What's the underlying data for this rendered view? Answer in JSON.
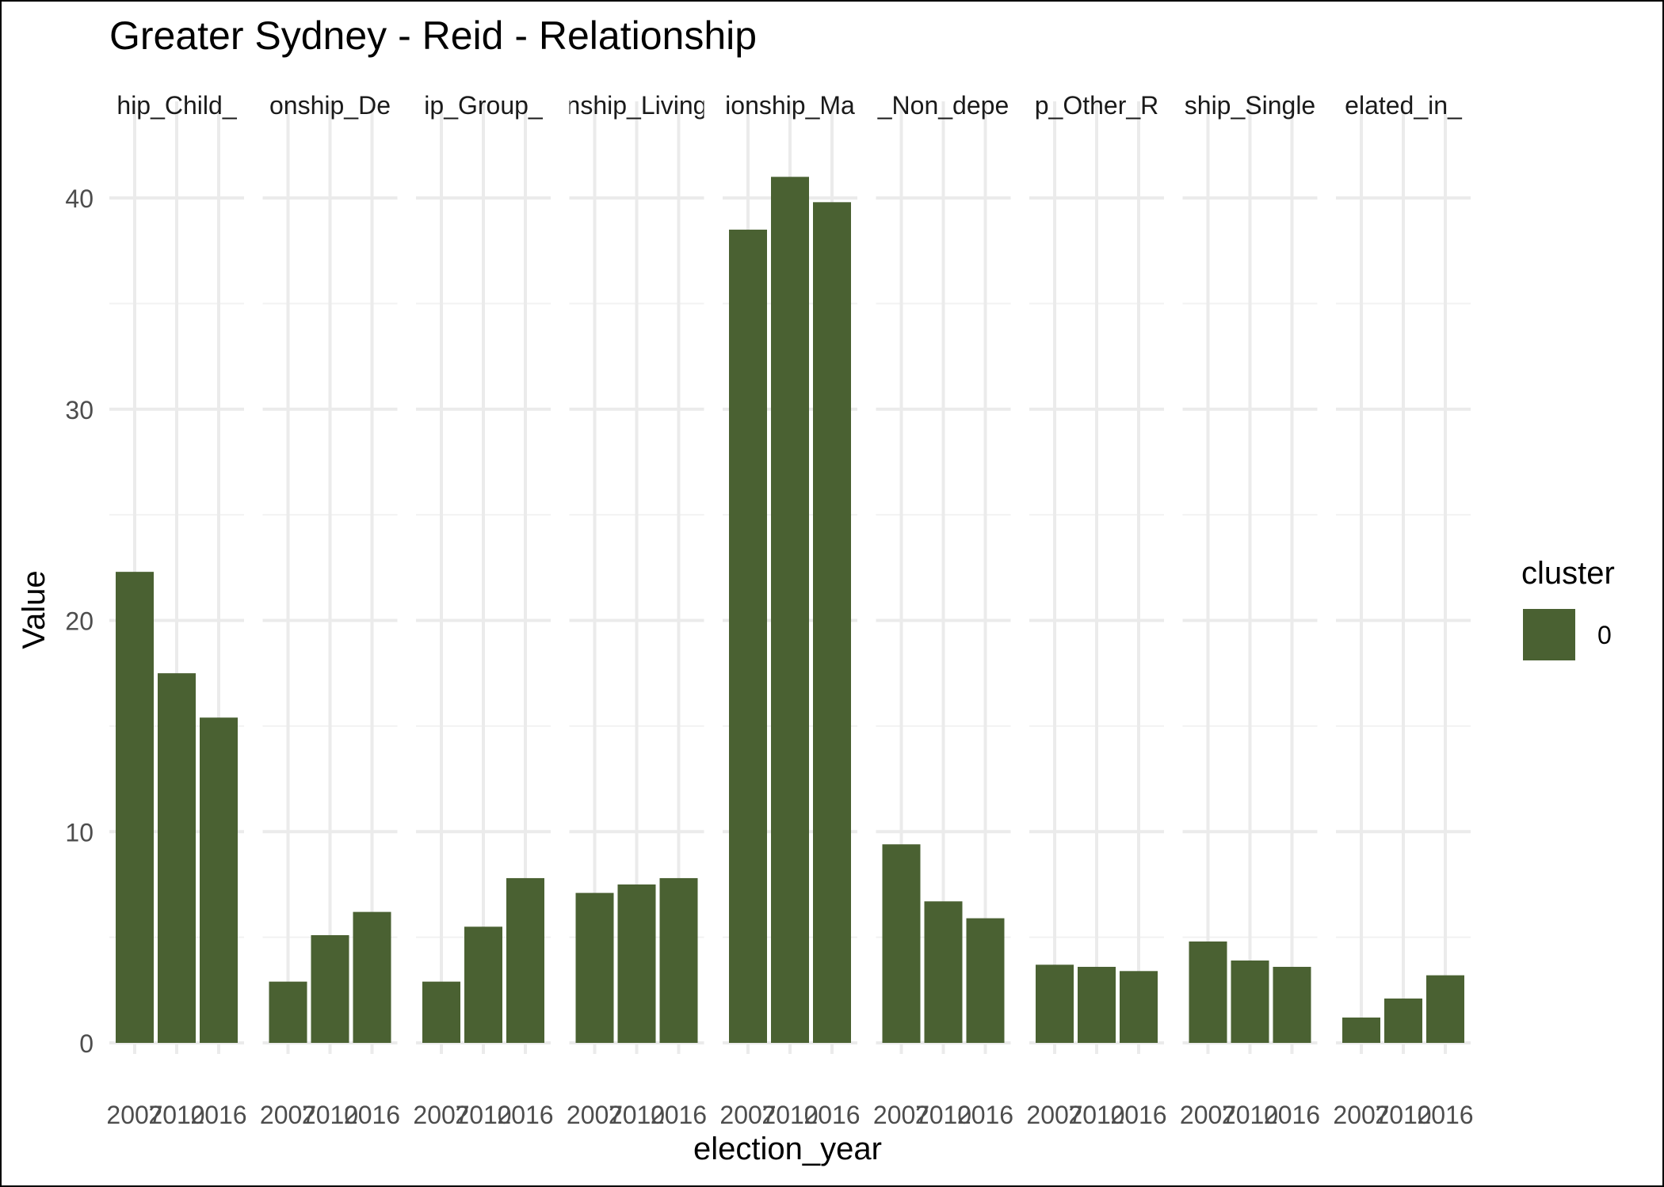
{
  "chart_data": {
    "type": "bar",
    "title": "Greater Sydney - Reid - Relationship",
    "xlabel": "election_year",
    "ylabel": "Value",
    "ylim": [
      0,
      42
    ],
    "y_ticks": [
      0,
      10,
      20,
      30,
      40
    ],
    "grid": true,
    "facet_labels": [
      "hip_Child_",
      "onship_De",
      "ip_Group_",
      "nship_Living",
      "ionship_Ma",
      "_Non_depe",
      "p_Other_R",
      "ship_Single",
      "elated_in_"
    ],
    "categories": [
      "2007",
      "2010",
      "2016"
    ],
    "panels": [
      {
        "values": [
          22.3,
          17.5,
          15.4
        ]
      },
      {
        "values": [
          2.9,
          5.1,
          6.2
        ]
      },
      {
        "values": [
          2.9,
          5.5,
          7.8
        ]
      },
      {
        "values": [
          7.1,
          7.5,
          7.8
        ]
      },
      {
        "values": [
          38.5,
          41.0,
          39.8
        ]
      },
      {
        "values": [
          9.4,
          6.7,
          5.9
        ]
      },
      {
        "values": [
          3.7,
          3.6,
          3.4
        ]
      },
      {
        "values": [
          4.8,
          3.9,
          3.6
        ]
      },
      {
        "values": [
          1.2,
          2.1,
          3.2
        ]
      }
    ],
    "legend": {
      "title": "cluster",
      "items": [
        {
          "label": "0",
          "color": "#4a6132"
        }
      ],
      "position": "right"
    },
    "bar_color": "#4a6132"
  }
}
